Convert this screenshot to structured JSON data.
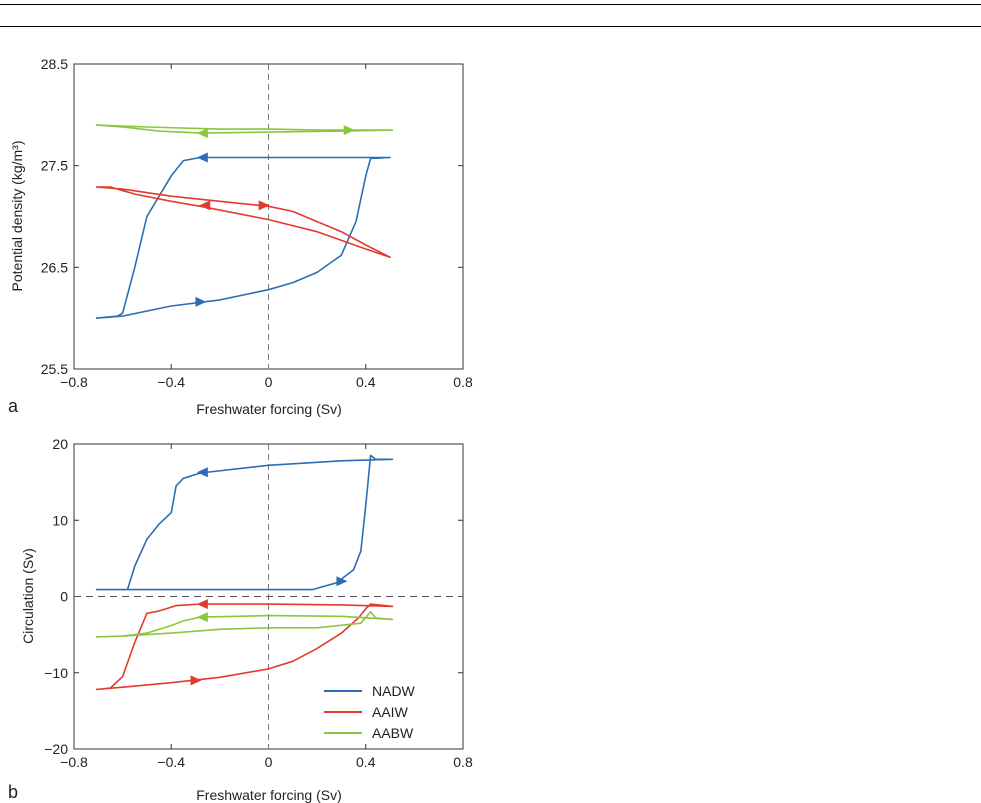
{
  "chart_data": [
    {
      "panel": "a",
      "type": "line",
      "xlabel": "Freshwater forcing (Sv)",
      "ylabel": "Potential density (kg/m³)",
      "xlim": [
        -0.8,
        0.8
      ],
      "ylim": [
        25.5,
        28.5
      ],
      "x_ticks": [
        "−0.8",
        "−0.4",
        "0",
        "0.4",
        "0.8"
      ],
      "y_ticks": [
        "25.5",
        "26.5",
        "27.5",
        "28.5"
      ],
      "zero_line": "vertical",
      "grid": false,
      "colors": {
        "NADW": "#2e6db4",
        "AAIW": "#e23b2e",
        "AABW": "#8cc63f"
      },
      "series": [
        {
          "name": "NADW",
          "points": [
            [
              -0.71,
              26.0
            ],
            [
              -0.6,
              26.02
            ],
            [
              -0.4,
              26.12
            ],
            [
              -0.2,
              26.18
            ],
            [
              0.0,
              26.28
            ],
            [
              0.1,
              26.35
            ],
            [
              0.2,
              26.45
            ],
            [
              0.3,
              26.62
            ],
            [
              0.36,
              26.95
            ],
            [
              0.4,
              27.4
            ],
            [
              0.42,
              27.57
            ],
            [
              0.5,
              27.58
            ],
            [
              0.3,
              27.58
            ],
            [
              0.0,
              27.58
            ],
            [
              -0.28,
              27.58
            ],
            [
              -0.35,
              27.55
            ],
            [
              -0.4,
              27.4
            ],
            [
              -0.45,
              27.2
            ],
            [
              -0.5,
              27.0
            ],
            [
              -0.55,
              26.5
            ],
            [
              -0.6,
              26.05
            ],
            [
              -0.62,
              26.02
            ],
            [
              -0.71,
              26.0
            ]
          ]
        },
        {
          "name": "AAIW",
          "points": [
            [
              -0.71,
              27.29
            ],
            [
              -0.6,
              27.27
            ],
            [
              -0.4,
              27.2
            ],
            [
              -0.2,
              27.15
            ],
            [
              0.0,
              27.1
            ],
            [
              0.1,
              27.05
            ],
            [
              0.2,
              26.95
            ],
            [
              0.3,
              26.85
            ],
            [
              0.4,
              26.72
            ],
            [
              0.5,
              26.6
            ],
            [
              0.4,
              26.68
            ],
            [
              0.2,
              26.85
            ],
            [
              0.0,
              26.97
            ],
            [
              -0.28,
              27.1
            ],
            [
              -0.4,
              27.15
            ],
            [
              -0.55,
              27.22
            ],
            [
              -0.65,
              27.29
            ],
            [
              -0.71,
              27.29
            ]
          ]
        },
        {
          "name": "AABW",
          "points": [
            [
              -0.71,
              27.9
            ],
            [
              -0.5,
              27.88
            ],
            [
              -0.2,
              27.86
            ],
            [
              0.0,
              27.86
            ],
            [
              0.2,
              27.85
            ],
            [
              0.4,
              27.85
            ],
            [
              0.51,
              27.85
            ],
            [
              0.3,
              27.84
            ],
            [
              0.0,
              27.83
            ],
            [
              -0.28,
              27.82
            ],
            [
              -0.45,
              27.84
            ],
            [
              -0.6,
              27.88
            ],
            [
              -0.71,
              27.9
            ]
          ]
        }
      ],
      "arrows": [
        {
          "series": "NADW",
          "x": -0.28,
          "y": 26.16,
          "dir": "right"
        },
        {
          "series": "NADW",
          "x": -0.27,
          "y": 27.58,
          "dir": "left"
        },
        {
          "series": "AAIW",
          "x": -0.26,
          "y": 27.11,
          "dir": "left"
        },
        {
          "series": "AAIW",
          "x": -0.02,
          "y": 27.11,
          "dir": "right"
        },
        {
          "series": "AABW",
          "x": -0.27,
          "y": 27.82,
          "dir": "left"
        },
        {
          "series": "AABW",
          "x": 0.33,
          "y": 27.85,
          "dir": "right"
        }
      ]
    },
    {
      "panel": "b",
      "type": "line",
      "xlabel": "Freshwater forcing (Sv)",
      "ylabel": "Circulation (Sv)",
      "xlim": [
        -0.8,
        0.8
      ],
      "ylim": [
        -20,
        20
      ],
      "x_ticks": [
        "−0.8",
        "−0.4",
        "0",
        "0.4",
        "0.8"
      ],
      "y_ticks": [
        "−20",
        "−10",
        "0",
        "10",
        "20"
      ],
      "zero_line": "both",
      "grid": false,
      "legend": {
        "placement": "bottom-right",
        "entries": [
          "NADW",
          "AAIW",
          "AABW"
        ]
      },
      "series": [
        {
          "name": "NADW",
          "points": [
            [
              -0.71,
              0.9
            ],
            [
              -0.6,
              0.9
            ],
            [
              -0.4,
              0.9
            ],
            [
              -0.2,
              0.9
            ],
            [
              0.0,
              0.9
            ],
            [
              0.18,
              0.9
            ],
            [
              0.28,
              1.8
            ],
            [
              0.35,
              3.5
            ],
            [
              0.38,
              6.0
            ],
            [
              0.4,
              12.0
            ],
            [
              0.42,
              18.5
            ],
            [
              0.44,
              18.0
            ],
            [
              0.51,
              18.0
            ],
            [
              0.3,
              17.8
            ],
            [
              0.0,
              17.2
            ],
            [
              -0.28,
              16.2
            ],
            [
              -0.35,
              15.5
            ],
            [
              -0.38,
              14.5
            ],
            [
              -0.4,
              11.0
            ],
            [
              -0.45,
              9.5
            ],
            [
              -0.5,
              7.5
            ],
            [
              -0.55,
              4.0
            ],
            [
              -0.58,
              0.9
            ]
          ]
        },
        {
          "name": "AAIW",
          "points": [
            [
              -0.71,
              -12.2
            ],
            [
              -0.6,
              -11.9
            ],
            [
              -0.4,
              -11.3
            ],
            [
              -0.2,
              -10.6
            ],
            [
              0.0,
              -9.5
            ],
            [
              0.1,
              -8.5
            ],
            [
              0.2,
              -6.8
            ],
            [
              0.3,
              -4.8
            ],
            [
              0.37,
              -2.8
            ],
            [
              0.4,
              -1.6
            ],
            [
              0.42,
              -1.0
            ],
            [
              0.51,
              -1.3
            ],
            [
              0.3,
              -1.1
            ],
            [
              0.0,
              -1.0
            ],
            [
              -0.28,
              -1.0
            ],
            [
              -0.38,
              -1.2
            ],
            [
              -0.45,
              -1.9
            ],
            [
              -0.5,
              -2.2
            ],
            [
              -0.55,
              -6.0
            ],
            [
              -0.6,
              -10.5
            ],
            [
              -0.65,
              -12.0
            ],
            [
              -0.71,
              -12.2
            ]
          ]
        },
        {
          "name": "AABW",
          "points": [
            [
              -0.71,
              -5.3
            ],
            [
              -0.6,
              -5.2
            ],
            [
              -0.4,
              -4.8
            ],
            [
              -0.2,
              -4.3
            ],
            [
              0.0,
              -4.1
            ],
            [
              0.2,
              -4.1
            ],
            [
              0.38,
              -3.5
            ],
            [
              0.42,
              -2.0
            ],
            [
              0.44,
              -2.8
            ],
            [
              0.51,
              -3.0
            ],
            [
              0.3,
              -2.6
            ],
            [
              0.0,
              -2.5
            ],
            [
              -0.28,
              -2.7
            ],
            [
              -0.35,
              -3.2
            ],
            [
              -0.4,
              -3.8
            ],
            [
              -0.5,
              -4.8
            ],
            [
              -0.6,
              -5.2
            ],
            [
              -0.71,
              -5.3
            ]
          ]
        }
      ],
      "arrows": [
        {
          "series": "NADW",
          "x": -0.27,
          "y": 16.3,
          "dir": "left"
        },
        {
          "series": "NADW",
          "x": 0.3,
          "y": 2.0,
          "dir": "right"
        },
        {
          "series": "AAIW",
          "x": -0.27,
          "y": -1.0,
          "dir": "left"
        },
        {
          "series": "AAIW",
          "x": -0.3,
          "y": -11.0,
          "dir": "right"
        },
        {
          "series": "AABW",
          "x": -0.27,
          "y": -2.7,
          "dir": "left"
        }
      ]
    }
  ]
}
